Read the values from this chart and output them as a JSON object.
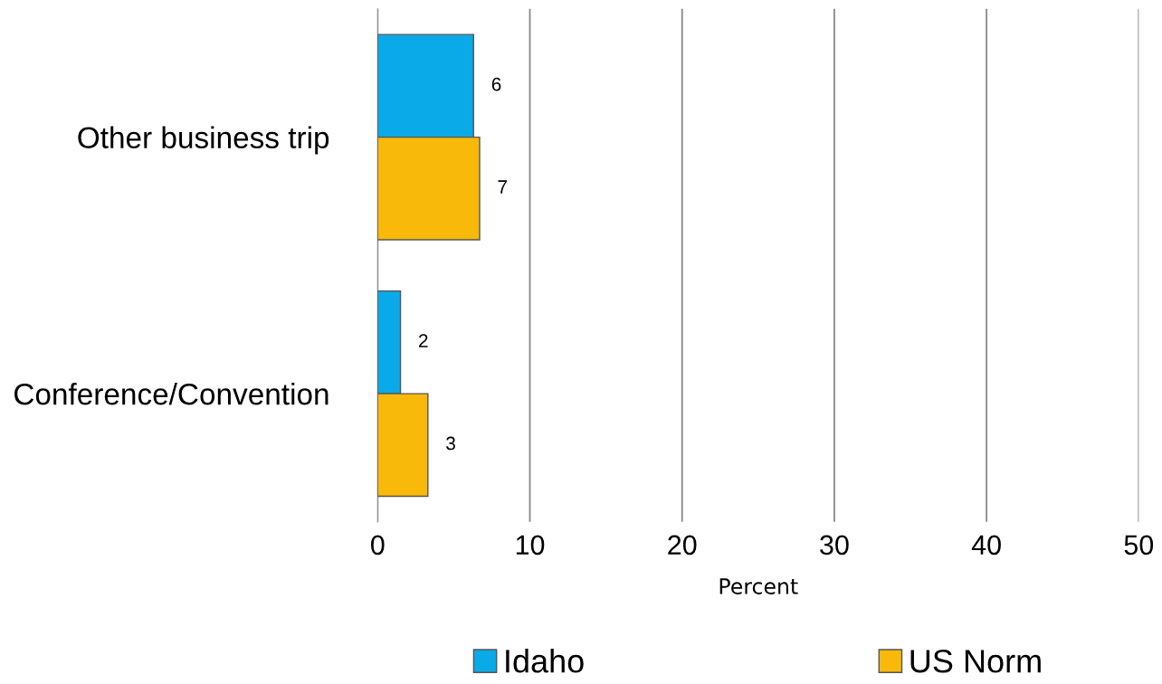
{
  "chart_data": {
    "type": "bar",
    "orientation": "horizontal",
    "xlabel": "Percent",
    "categories": [
      "Other business trip",
      "Conference/Convention"
    ],
    "series": [
      {
        "name": "Idaho",
        "color": "#0aaae8",
        "values": [
          6.3,
          1.5
        ],
        "value_labels": [
          "6",
          "2"
        ]
      },
      {
        "name": "US Norm",
        "color": "#f8b90a",
        "values": [
          6.7,
          3.3
        ],
        "value_labels": [
          "7",
          "3"
        ]
      }
    ],
    "xlim": [
      0,
      50
    ],
    "xticks": [
      0,
      10,
      20,
      30,
      40,
      50
    ],
    "grid": "x",
    "legend": "bottom"
  }
}
